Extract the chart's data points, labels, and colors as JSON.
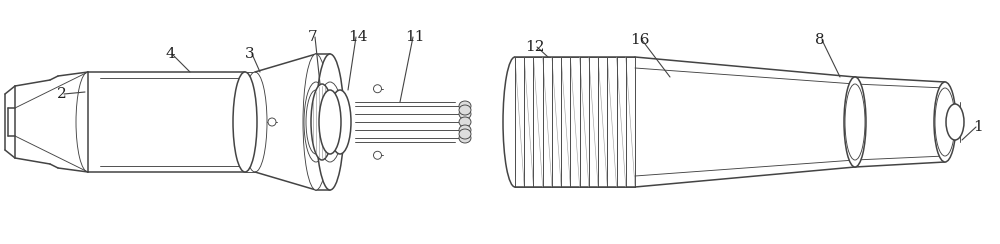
{
  "bg_color": "#ffffff",
  "line_color": "#444444",
  "line_width": 1.1,
  "thin_line": 0.65,
  "fig_width": 10.0,
  "fig_height": 2.44,
  "dpi": 100
}
